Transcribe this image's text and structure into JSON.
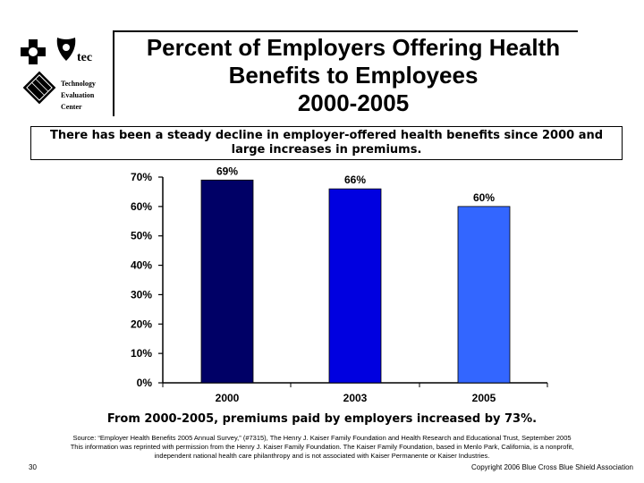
{
  "logo": {
    "org_lines": [
      "Technology",
      "Evaluation",
      "Center"
    ],
    "tec_text": "tec"
  },
  "title_lines": [
    "Percent of Employers Offering Health",
    "Benefits to Employees",
    "2000-2005"
  ],
  "callout_lines": [
    "There has been a steady decline in employer-offered health benefits since 2000 and",
    "large increases in premiums."
  ],
  "chart_data": {
    "type": "bar",
    "categories": [
      "2000",
      "2003",
      "2005"
    ],
    "values": [
      69,
      66,
      60
    ],
    "data_labels": [
      "69%",
      "66%",
      "60%"
    ],
    "yticks": [
      "0%",
      "10%",
      "20%",
      "30%",
      "40%",
      "50%",
      "60%",
      "70%"
    ],
    "ylim": [
      0,
      70
    ],
    "grid": false,
    "bar_colors": [
      "#000066",
      "#0000e0",
      "#3366ff"
    ]
  },
  "summary": "From 2000-2005, premiums paid by employers increased by 73%.",
  "source_lines": [
    "Source: “Employer Health Benefits 2005 Annual Survey,” (#7315), The Henry J. Kaiser Family Foundation and Health Research and Educational Trust, September 2005",
    "This information was reprinted with permission from the Henry J. Kaiser Family Foundation. The Kaiser Family Foundation, based in Menlo Park, California, is a nonprofit,",
    "independent national health care philanthropy and is not associated with Kaiser Permanente or Kaiser Industries."
  ],
  "footer": {
    "page_number": "30",
    "copyright": "Copyright 2006 Blue Cross Blue Shield Association"
  }
}
